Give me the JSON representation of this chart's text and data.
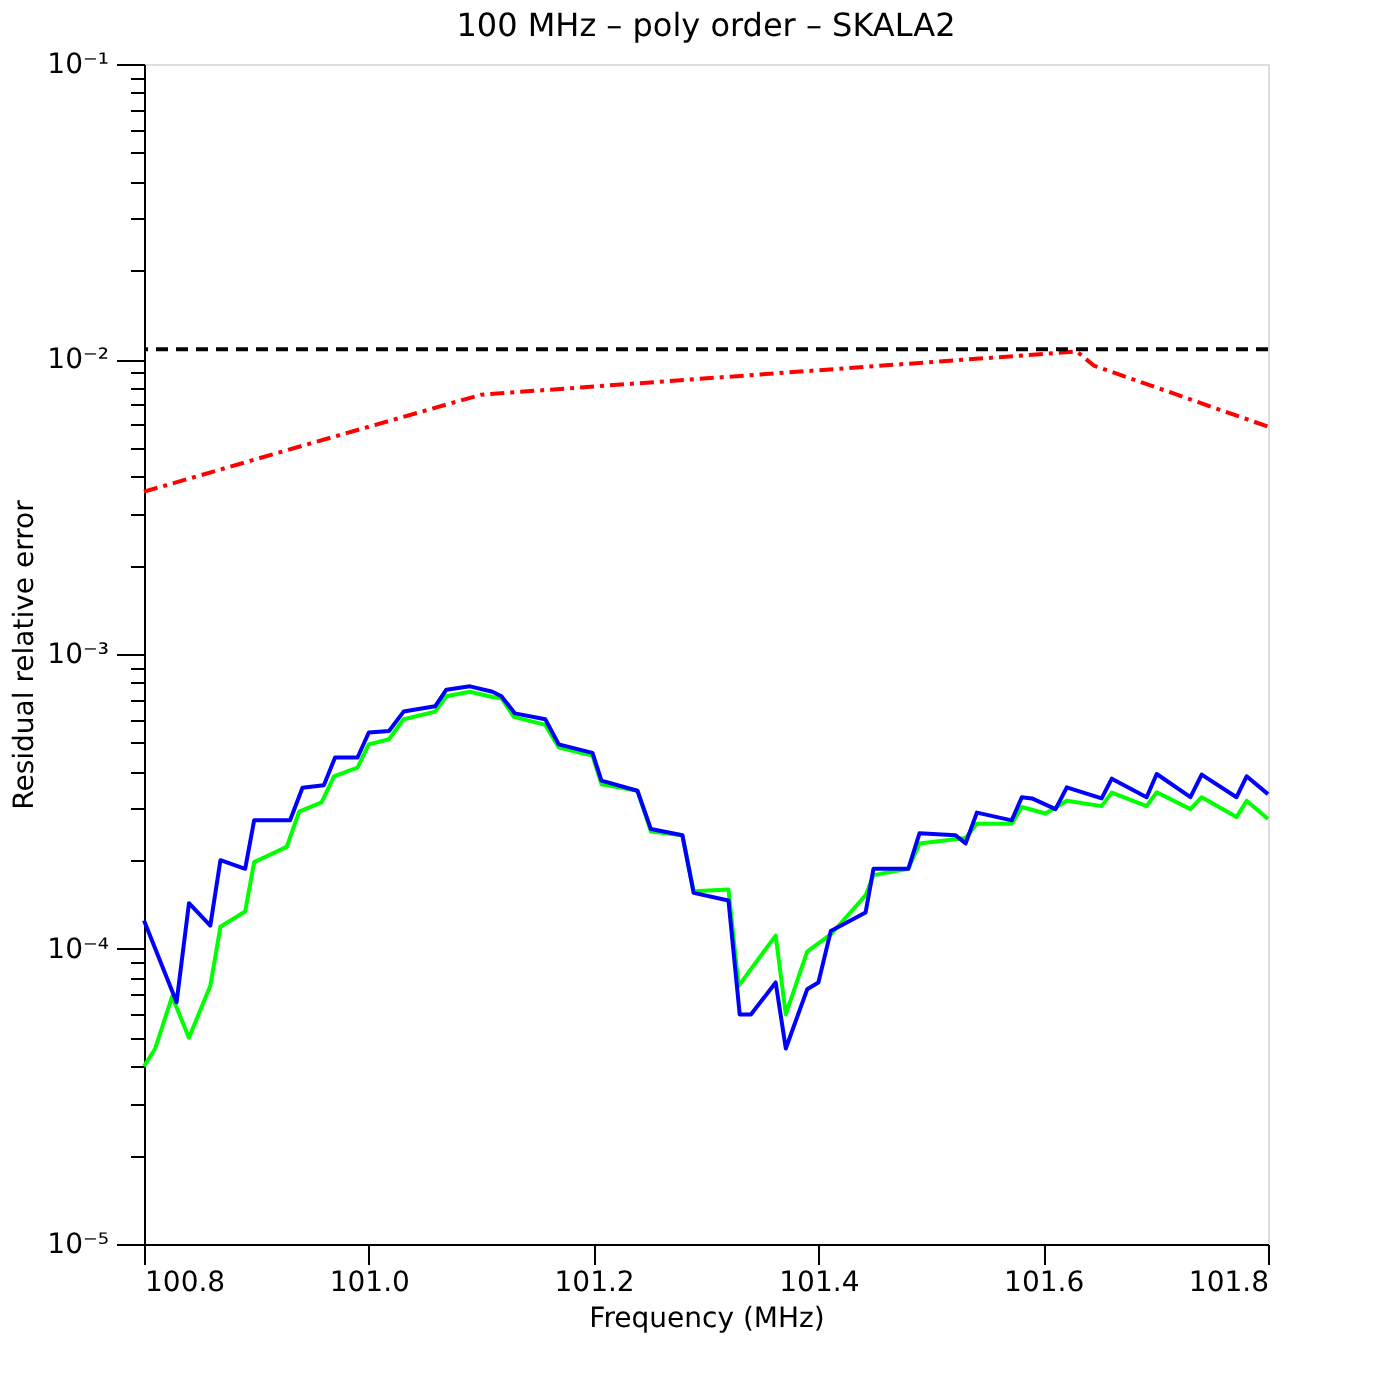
{
  "chart_data": {
    "type": "line",
    "title": "100 MHz – poly order – SKALA2",
    "xlabel": "Frequency (MHz)",
    "ylabel": "Residual relative error",
    "log": "y",
    "grid": false,
    "marker": "none",
    "xlim": [
      100.8,
      101.8
    ],
    "xticks": [
      {
        "value": 100.8,
        "label": "100.8"
      },
      {
        "value": 101.0,
        "label": "101.0"
      },
      {
        "value": 101.2,
        "label": "101.2"
      },
      {
        "value": 101.4,
        "label": "101.4"
      },
      {
        "value": 101.6,
        "label": "101.6"
      },
      {
        "value": 101.8,
        "label": "101.8"
      }
    ],
    "ylim": [
      1e-05,
      0.1
    ],
    "yticks": [
      {
        "value": 1e-05,
        "label": "10⁻⁵"
      },
      {
        "value": 2e-05,
        "label": null
      },
      {
        "value": 3e-05,
        "label": null
      },
      {
        "value": 4e-05,
        "label": null
      },
      {
        "value": 5e-05,
        "label": null
      },
      {
        "value": 6e-05,
        "label": null
      },
      {
        "value": 7e-05,
        "label": null
      },
      {
        "value": 8e-05,
        "label": null
      },
      {
        "value": 9e-05,
        "label": null
      },
      {
        "value": 0.0001,
        "label": "10⁻⁴"
      },
      {
        "value": 0.0002,
        "label": null
      },
      {
        "value": 0.0003,
        "label": null
      },
      {
        "value": 0.0004,
        "label": null
      },
      {
        "value": 0.0005,
        "label": null
      },
      {
        "value": 0.0006,
        "label": null
      },
      {
        "value": 0.0007,
        "label": null
      },
      {
        "value": 0.0008,
        "label": null
      },
      {
        "value": 0.0009,
        "label": null
      },
      {
        "value": 0.001,
        "label": "10⁻³"
      },
      {
        "value": 0.002,
        "label": null
      },
      {
        "value": 0.003,
        "label": null
      },
      {
        "value": 0.004,
        "label": null
      },
      {
        "value": 0.005,
        "label": null
      },
      {
        "value": 0.006,
        "label": null
      },
      {
        "value": 0.007,
        "label": null
      },
      {
        "value": 0.008,
        "label": null
      },
      {
        "value": 0.009,
        "label": null
      },
      {
        "value": 0.01,
        "label": "10⁻²"
      },
      {
        "value": 0.02,
        "label": null
      },
      {
        "value": 0.03,
        "label": null
      },
      {
        "value": 0.04,
        "label": null
      },
      {
        "value": 0.05,
        "label": null
      },
      {
        "value": 0.06,
        "label": null
      },
      {
        "value": 0.07,
        "label": null
      },
      {
        "value": 0.08,
        "label": null
      },
      {
        "value": 0.09,
        "label": null
      },
      {
        "value": 0.1,
        "label": "10⁻¹"
      }
    ],
    "ref_lines": [
      {
        "axis": "y",
        "value": 0.0108,
        "color": "#000000",
        "line_style": "dashed"
      }
    ],
    "series": [
      {
        "color": "#ff0000",
        "line_style": "dashed",
        "x": [
          100.8,
          100.95,
          101.1,
          101.63,
          101.645,
          101.8
        ],
        "values": [
          0.00355,
          0.0052,
          0.00757,
          0.0106,
          0.0095,
          0.0059
        ]
      },
      {
        "color": "#00ff00",
        "line_style": "solid",
        "x": [
          100.8,
          100.81,
          100.825,
          100.84,
          100.859,
          100.868,
          100.89,
          100.898,
          100.927,
          100.938,
          100.958,
          100.969,
          100.99,
          101.0,
          101.018,
          101.031,
          101.059,
          101.069,
          101.09,
          101.11,
          101.118,
          101.129,
          101.157,
          101.169,
          101.199,
          101.207,
          101.239,
          101.251,
          101.279,
          101.289,
          101.32,
          101.329,
          101.362,
          101.371,
          101.39,
          101.411,
          101.442,
          101.449,
          101.48,
          101.49,
          101.531,
          101.541,
          101.572,
          101.581,
          101.602,
          101.621,
          101.652,
          101.661,
          101.692,
          101.701,
          101.731,
          101.741,
          101.772,
          101.781,
          101.8
        ],
        "values": [
          4e-05,
          4.6e-05,
          6.9e-05,
          5e-05,
          7.5e-05,
          0.000119,
          0.000134,
          0.000197,
          0.000222,
          0.000292,
          0.000314,
          0.000385,
          0.000412,
          0.000494,
          0.000514,
          0.000601,
          0.000638,
          0.000719,
          0.000745,
          0.000715,
          0.000708,
          0.000612,
          0.000575,
          0.000482,
          0.000453,
          0.000362,
          0.000344,
          0.00025,
          0.000243,
          0.000157,
          0.000159,
          7.5e-05,
          0.000111,
          6e-05,
          9.8e-05,
          0.000112,
          0.000152,
          0.000178,
          0.000187,
          0.000228,
          0.000238,
          0.000266,
          0.000266,
          0.000303,
          0.000288,
          0.000318,
          0.000305,
          0.000339,
          0.000305,
          0.00034,
          0.000298,
          0.000327,
          0.00028,
          0.000318,
          0.000276
        ]
      },
      {
        "color": "#0000ff",
        "line_style": "solid",
        "x": [
          100.8,
          100.829,
          100.84,
          100.859,
          100.868,
          100.89,
          100.898,
          100.93,
          100.941,
          100.96,
          100.97,
          100.99,
          101.0,
          101.018,
          101.031,
          101.059,
          101.069,
          101.09,
          101.11,
          101.118,
          101.13,
          101.157,
          101.169,
          101.199,
          101.207,
          101.239,
          101.251,
          101.279,
          101.289,
          101.32,
          101.33,
          101.34,
          101.362,
          101.371,
          101.39,
          101.4,
          101.411,
          101.442,
          101.449,
          101.48,
          101.49,
          101.522,
          101.531,
          101.541,
          101.572,
          101.581,
          101.59,
          101.611,
          101.621,
          101.652,
          101.661,
          101.692,
          101.701,
          101.731,
          101.741,
          101.772,
          101.781,
          101.8
        ],
        "values": [
          0.000125,
          6.6e-05,
          0.000143,
          0.00012,
          0.0002,
          0.000187,
          0.000273,
          0.000273,
          0.000352,
          0.000359,
          0.000446,
          0.000446,
          0.000542,
          0.000548,
          0.000638,
          0.000665,
          0.000757,
          0.000777,
          0.000745,
          0.000719,
          0.000629,
          0.000601,
          0.000494,
          0.000462,
          0.000372,
          0.000344,
          0.000255,
          0.000243,
          0.000155,
          0.000146,
          6e-05,
          6e-05,
          7.7e-05,
          4.6e-05,
          7.3e-05,
          7.7e-05,
          0.000115,
          0.000133,
          0.000187,
          0.000187,
          0.000247,
          0.000243,
          0.000228,
          0.00029,
          0.000273,
          0.000327,
          0.000324,
          0.000298,
          0.000353,
          0.000324,
          0.000378,
          0.000327,
          0.000392,
          0.000327,
          0.00039,
          0.000327,
          0.000385,
          0.000335
        ]
      }
    ]
  }
}
